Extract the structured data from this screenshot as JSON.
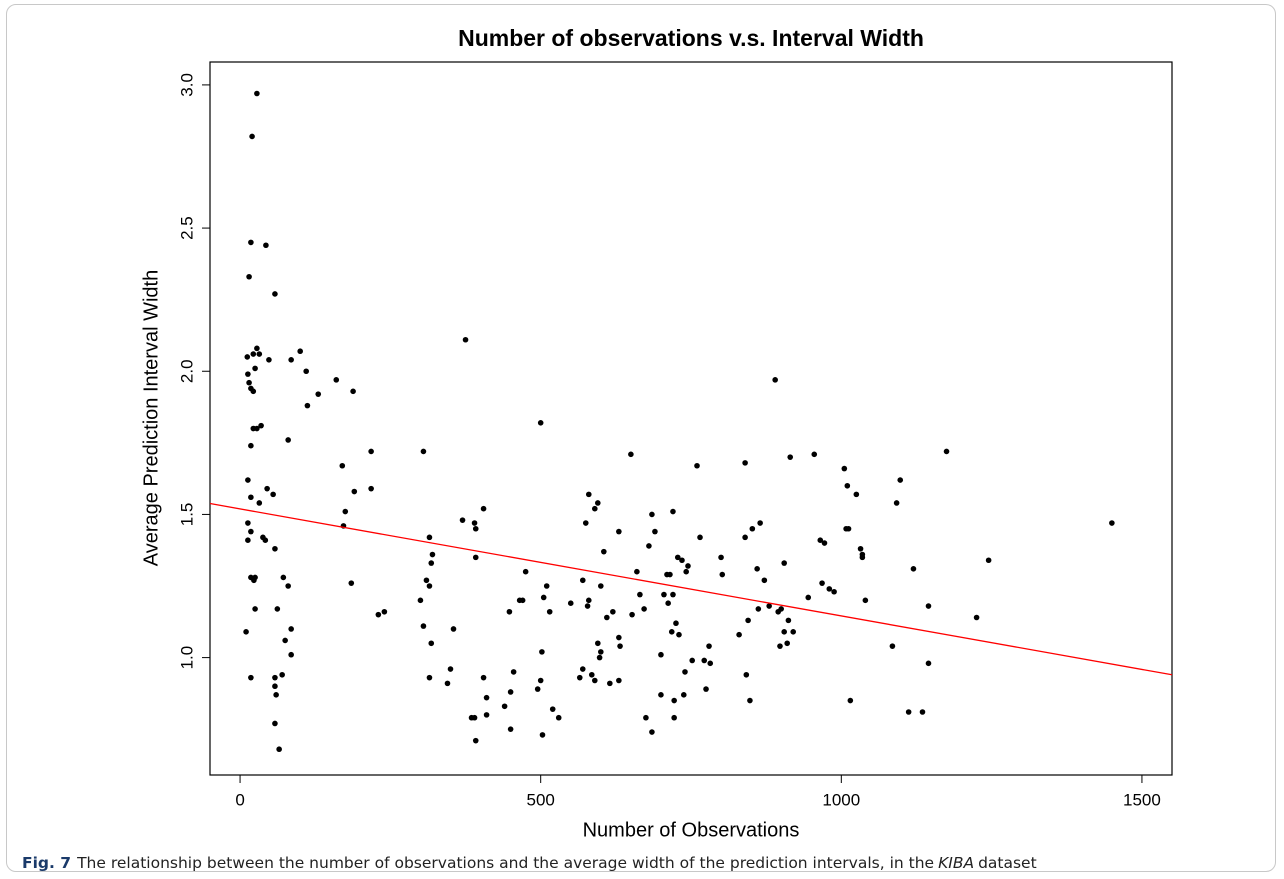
{
  "chart_data": {
    "type": "scatter",
    "title": "Number of observations v.s. Interval Width",
    "xlabel": "Number of Observations",
    "ylabel": "Average Prediction Interval Width",
    "xlim": [
      -50,
      1550
    ],
    "ylim": [
      0.59,
      3.08
    ],
    "xticks": [
      0,
      500,
      1000,
      1500
    ],
    "yticks": [
      {
        "value": 1,
        "label": "1.0"
      },
      1.5,
      {
        "value": 2,
        "label": "2.0"
      },
      2.5,
      {
        "value": 3,
        "label": "3.0"
      }
    ],
    "color": "#000000",
    "x": [
      28,
      20,
      18,
      43,
      15,
      58,
      12,
      22,
      28,
      32,
      48,
      15,
      13,
      18,
      22,
      25,
      22,
      28,
      35,
      18,
      13,
      18,
      32,
      45,
      55,
      13,
      18,
      13,
      38,
      42,
      58,
      18,
      23,
      25,
      62,
      25,
      10,
      18,
      72,
      80,
      85,
      75,
      70,
      58,
      58,
      60,
      58,
      65,
      85,
      80,
      85,
      100,
      110,
      112,
      130,
      160,
      170,
      175,
      172,
      185,
      190,
      188,
      218,
      218,
      230,
      240,
      305,
      300,
      305,
      310,
      315,
      318,
      320,
      315,
      318,
      315,
      355,
      345,
      350,
      375,
      370,
      390,
      392,
      392,
      405,
      385,
      390,
      392,
      405,
      410,
      410,
      440,
      450,
      455,
      450,
      448,
      465,
      470,
      475,
      500,
      502,
      500,
      495,
      503,
      505,
      510,
      515,
      520,
      530,
      550,
      565,
      570,
      570,
      575,
      580,
      578,
      580,
      585,
      590,
      595,
      595,
      600,
      598,
      590,
      600,
      605,
      610,
      620,
      615,
      630,
      630,
      632,
      630,
      650,
      652,
      660,
      665,
      672,
      675,
      685,
      685,
      680,
      690,
      700,
      700,
      705,
      710,
      712,
      715,
      718,
      720,
      720,
      722,
      722,
      725,
      728,
      730,
      735,
      738,
      740,
      742,
      745,
      752,
      760,
      765,
      772,
      775,
      780,
      782,
      800,
      802,
      830,
      840,
      840,
      842,
      845,
      848,
      852,
      860,
      865,
      862,
      872,
      880,
      890,
      895,
      898,
      900,
      905,
      905,
      910,
      912,
      915,
      920,
      945,
      955,
      965,
      968,
      972,
      980,
      988,
      1005,
      1008,
      1010,
      1012,
      1015,
      1025,
      1032,
      1035,
      1035,
      1040,
      1085,
      1092,
      1098,
      1112,
      1120,
      1135,
      1145,
      1145,
      1175,
      1225,
      1245,
      1450
    ],
    "y": [
      2.97,
      2.82,
      2.45,
      2.44,
      2.33,
      2.27,
      2.05,
      2.06,
      2.08,
      2.06,
      2.04,
      1.96,
      1.99,
      1.94,
      1.93,
      2.01,
      1.8,
      1.8,
      1.81,
      1.74,
      1.62,
      1.56,
      1.54,
      1.59,
      1.57,
      1.47,
      1.44,
      1.41,
      1.42,
      1.41,
      1.38,
      1.28,
      1.27,
      1.28,
      1.17,
      1.17,
      1.09,
      0.93,
      1.28,
      1.25,
      1.1,
      1.06,
      0.94,
      0.93,
      0.9,
      0.87,
      0.77,
      0.68,
      1.01,
      1.76,
      2.04,
      2.07,
      2,
      1.88,
      1.92,
      1.97,
      1.67,
      1.51,
      1.46,
      1.26,
      1.58,
      1.93,
      1.72,
      1.59,
      1.15,
      1.16,
      1.72,
      1.2,
      1.11,
      1.27,
      1.42,
      1.33,
      1.36,
      1.25,
      1.05,
      0.93,
      1.1,
      0.91,
      0.96,
      2.11,
      1.48,
      1.47,
      1.45,
      1.35,
      1.52,
      0.79,
      0.79,
      0.71,
      0.93,
      0.86,
      0.8,
      0.83,
      0.88,
      0.95,
      0.75,
      1.16,
      1.2,
      1.2,
      1.3,
      1.82,
      1.02,
      0.92,
      0.89,
      0.73,
      1.21,
      1.25,
      1.16,
      0.82,
      0.79,
      1.19,
      0.93,
      0.96,
      1.27,
      1.47,
      1.57,
      1.18,
      1.2,
      0.94,
      1.52,
      1.54,
      1.05,
      1.02,
      1,
      0.92,
      1.25,
      1.37,
      1.14,
      1.16,
      0.91,
      1.44,
      1.07,
      1.04,
      0.92,
      1.71,
      1.15,
      1.3,
      1.22,
      1.17,
      0.79,
      0.74,
      1.5,
      1.39,
      1.44,
      1.01,
      0.87,
      1.22,
      1.29,
      1.19,
      1.29,
      1.09,
      1.51,
      1.22,
      0.85,
      0.79,
      1.12,
      1.35,
      1.08,
      1.34,
      0.87,
      0.95,
      1.3,
      1.32,
      0.99,
      1.67,
      1.42,
      0.99,
      0.89,
      1.04,
      0.98,
      1.35,
      1.29,
      1.08,
      1.68,
      1.42,
      0.94,
      1.13,
      0.85,
      1.45,
      1.31,
      1.47,
      1.17,
      1.27,
      1.18,
      1.97,
      1.16,
      1.04,
      1.17,
      1.09,
      1.33,
      1.05,
      1.13,
      1.7,
      1.09,
      1.21,
      1.71,
      1.41,
      1.26,
      1.4,
      1.24,
      1.23,
      1.66,
      1.45,
      1.6,
      1.45,
      0.85,
      1.57,
      1.38,
      1.36,
      1.35,
      1.2,
      1.04,
      1.54,
      1.62,
      0.81,
      1.31,
      0.81,
      0.98,
      1.18,
      1.72,
      1.14,
      1.34,
      1.47
    ],
    "fit": {
      "x": [
        -50,
        1550
      ],
      "y": [
        1.538,
        0.94
      ],
      "color": "#ff0000"
    },
    "caption": {
      "label": "Fig. 7",
      "text": [
        "The relationship between the number of observations and the average width of the prediction intervals, in the",
        "KIBA",
        "dataset"
      ]
    }
  }
}
